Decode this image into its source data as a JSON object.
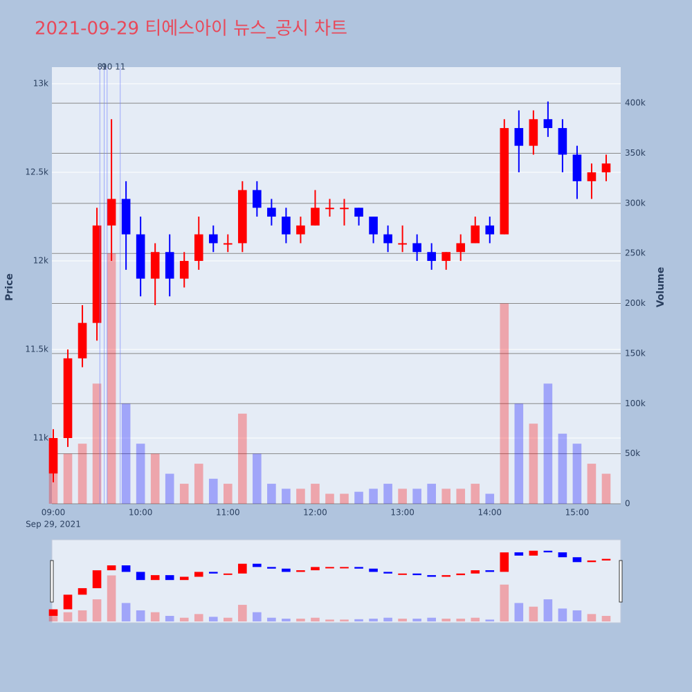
{
  "chart_data": {
    "type": "candlestick",
    "title": "2021-09-29 티에스아이 뉴스_공시 차트",
    "y_title": "Price",
    "y2_title": "Volume",
    "x_date_label": "Sep 29, 2021",
    "up_color": "#ff0000",
    "down_color": "#0000ff",
    "x": [
      "09:00",
      "09:10",
      "09:20",
      "09:30",
      "09:40",
      "09:50",
      "10:00",
      "10:10",
      "10:20",
      "10:30",
      "10:40",
      "10:50",
      "11:00",
      "11:10",
      "11:20",
      "11:30",
      "11:40",
      "11:50",
      "12:00",
      "12:10",
      "12:20",
      "12:30",
      "12:40",
      "12:50",
      "13:00",
      "13:10",
      "13:20",
      "13:30",
      "13:40",
      "13:50",
      "14:00",
      "14:10",
      "14:20",
      "14:30",
      "14:40",
      "14:50",
      "15:00",
      "15:10",
      "15:20"
    ],
    "open": [
      10800,
      11000,
      11450,
      11650,
      12200,
      12350,
      12150,
      11900,
      12050,
      11900,
      12000,
      12150,
      12100,
      12100,
      12400,
      12300,
      12250,
      12150,
      12200,
      12300,
      12300,
      12300,
      12250,
      12150,
      12100,
      12100,
      12050,
      12000,
      12050,
      12100,
      12200,
      12150,
      12750,
      12650,
      12800,
      12750,
      12600,
      12450,
      12500
    ],
    "high": [
      11050,
      11500,
      11750,
      12300,
      12800,
      12450,
      12250,
      12100,
      12150,
      12050,
      12250,
      12200,
      12150,
      12450,
      12450,
      12350,
      12300,
      12250,
      12400,
      12350,
      12350,
      12300,
      12250,
      12200,
      12200,
      12150,
      12100,
      12050,
      12150,
      12250,
      12250,
      12800,
      12850,
      12850,
      12900,
      12800,
      12650,
      12550,
      12600
    ],
    "low": [
      10750,
      10950,
      11400,
      11550,
      12000,
      11950,
      11800,
      11750,
      11800,
      11850,
      11950,
      12050,
      12050,
      12050,
      12250,
      12200,
      12100,
      12100,
      12200,
      12250,
      12200,
      12200,
      12100,
      12050,
      12050,
      12000,
      11950,
      11950,
      12000,
      12100,
      12100,
      12150,
      12500,
      12600,
      12700,
      12500,
      12350,
      12350,
      12450
    ],
    "close": [
      11000,
      11450,
      11650,
      12200,
      12350,
      12150,
      11900,
      12050,
      11900,
      12000,
      12150,
      12100,
      12100,
      12400,
      12300,
      12250,
      12150,
      12200,
      12300,
      12300,
      12300,
      12250,
      12150,
      12100,
      12100,
      12050,
      12000,
      12050,
      12100,
      12200,
      12150,
      12750,
      12650,
      12800,
      12750,
      12600,
      12450,
      12500,
      12550
    ],
    "volume": [
      60000,
      50000,
      60000,
      120000,
      250000,
      100000,
      60000,
      50000,
      30000,
      20000,
      40000,
      25000,
      20000,
      90000,
      50000,
      20000,
      15000,
      15000,
      20000,
      10000,
      10000,
      12000,
      15000,
      20000,
      15000,
      15000,
      20000,
      15000,
      15000,
      20000,
      10000,
      200000,
      100000,
      80000,
      120000,
      70000,
      60000,
      40000,
      30000
    ],
    "xlim": [
      "09:00",
      "15:30"
    ],
    "xticks": [
      "09:00",
      "10:00",
      "11:00",
      "12:00",
      "13:00",
      "14:00",
      "15:00"
    ],
    "ylim": [
      10629,
      13094
    ],
    "yticks": [
      {
        "value": 11000,
        "label": "11k"
      },
      {
        "value": 11500,
        "label": "11.5k"
      },
      {
        "value": 12000,
        "label": "12k"
      },
      {
        "value": 12500,
        "label": "12.5k"
      },
      {
        "value": 13000,
        "label": "13k"
      }
    ],
    "y2lim": [
      0,
      436000
    ],
    "y2ticks": [
      0,
      {
        "value": 50000,
        "label": "50k"
      },
      {
        "value": 100000,
        "label": "100k"
      },
      {
        "value": 150000,
        "label": "150k"
      },
      {
        "value": 200000,
        "label": "200k"
      },
      {
        "value": 250000,
        "label": "250k"
      },
      {
        "value": 300000,
        "label": "300k"
      },
      {
        "value": 350000,
        "label": "350k"
      },
      {
        "value": 400000,
        "label": "400k"
      }
    ],
    "annotations": [
      {
        "x": "09:32",
        "text": "8"
      },
      {
        "x": "09:35",
        "text": "9"
      },
      {
        "x": "09:37",
        "text": "10"
      },
      {
        "x": "09:46",
        "text": "11"
      }
    ],
    "grid": true
  }
}
